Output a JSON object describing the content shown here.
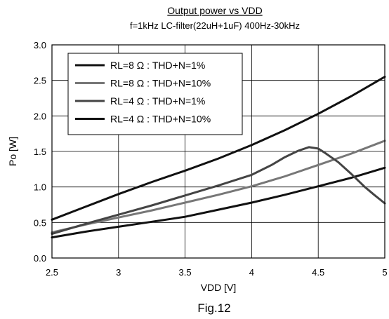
{
  "chart_data": {
    "type": "line",
    "title": "Output power vs VDD",
    "subtitle": "f=1kHz LC-filter(22uH+1uF) 400Hz-30kHz",
    "xlabel": "VDD [V]",
    "ylabel": "Po [W]",
    "caption": "Fig.12",
    "xlim": [
      2.5,
      5
    ],
    "ylim": [
      0,
      3
    ],
    "xticks": [
      2.5,
      3,
      3.5,
      4,
      4.5,
      5
    ],
    "xtick_labels": [
      "2.5",
      "3",
      "3.5",
      "4",
      "4.5",
      "5"
    ],
    "yticks": [
      0,
      0.5,
      1,
      1.5,
      2,
      2.5,
      3
    ],
    "ytick_labels": [
      "0.0",
      "0.5",
      "1.0",
      "1.5",
      "2.0",
      "2.5",
      "3.0"
    ],
    "grid": true,
    "legend_position": "top-left",
    "series": [
      {
        "name": "RL=8 Ω : THD+N=1%",
        "color": "#111111",
        "x": [
          2.5,
          2.75,
          3.0,
          3.25,
          3.5,
          3.75,
          4.0,
          4.25,
          4.5,
          4.75,
          5.0
        ],
        "y": [
          0.29,
          0.37,
          0.44,
          0.51,
          0.58,
          0.68,
          0.78,
          0.89,
          1.01,
          1.13,
          1.27
        ]
      },
      {
        "name": "RL=8 Ω : THD+N=10%",
        "color": "#777777",
        "x": [
          2.5,
          2.75,
          3.0,
          3.25,
          3.5,
          3.75,
          4.0,
          4.25,
          4.5,
          4.75,
          5.0
        ],
        "y": [
          0.36,
          0.47,
          0.57,
          0.67,
          0.78,
          0.89,
          1.01,
          1.15,
          1.31,
          1.47,
          1.65
        ]
      },
      {
        "name": "RL=4 Ω : THD+N=1%",
        "color": "#444444",
        "x": [
          2.5,
          2.75,
          3.0,
          3.25,
          3.5,
          3.75,
          4.0,
          4.15,
          4.25,
          4.35,
          4.43,
          4.5,
          4.55,
          4.65,
          4.75,
          4.85,
          4.92,
          5.0
        ],
        "y": [
          0.34,
          0.48,
          0.61,
          0.74,
          0.88,
          1.02,
          1.17,
          1.31,
          1.42,
          1.51,
          1.56,
          1.54,
          1.48,
          1.35,
          1.18,
          1.0,
          0.89,
          0.77
        ]
      },
      {
        "name": "RL=4 Ω : THD+N=10%",
        "color": "#111111",
        "x": [
          2.5,
          2.75,
          3.0,
          3.25,
          3.5,
          3.75,
          4.0,
          4.25,
          4.5,
          4.75,
          5.0
        ],
        "y": [
          0.54,
          0.72,
          0.9,
          1.07,
          1.23,
          1.4,
          1.59,
          1.8,
          2.03,
          2.28,
          2.55
        ]
      }
    ]
  }
}
